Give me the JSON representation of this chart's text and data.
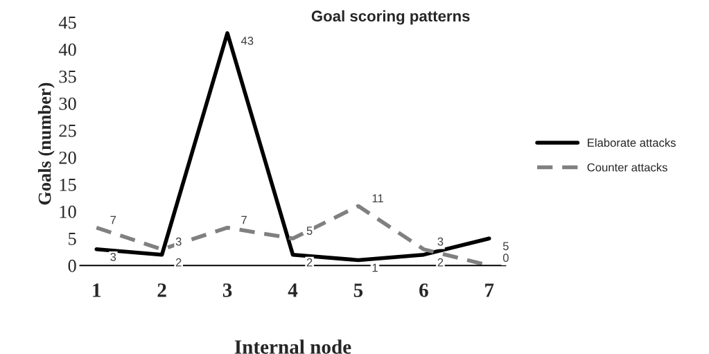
{
  "chart_data": {
    "type": "line",
    "title": "Goal scoring patterns",
    "xlabel": "Internal node",
    "ylabel": "Goals (number)",
    "categories": [
      "1",
      "2",
      "3",
      "4",
      "5",
      "6",
      "7"
    ],
    "series": [
      {
        "name": "Elaborate attacks",
        "color": "#000000",
        "values": [
          3,
          2,
          43,
          2,
          1,
          2,
          5
        ],
        "line_style": "solid"
      },
      {
        "name": "Counter attacks",
        "color": "#808080",
        "values": [
          7,
          3,
          7,
          5,
          11,
          3,
          0
        ],
        "line_style": "dashed"
      }
    ],
    "ylim": [
      0,
      45
    ],
    "yticks": [
      0,
      5,
      10,
      15,
      20,
      25,
      30,
      35,
      40,
      45
    ],
    "grid": false,
    "legend": "right",
    "data_labels": true,
    "marker": "none"
  }
}
